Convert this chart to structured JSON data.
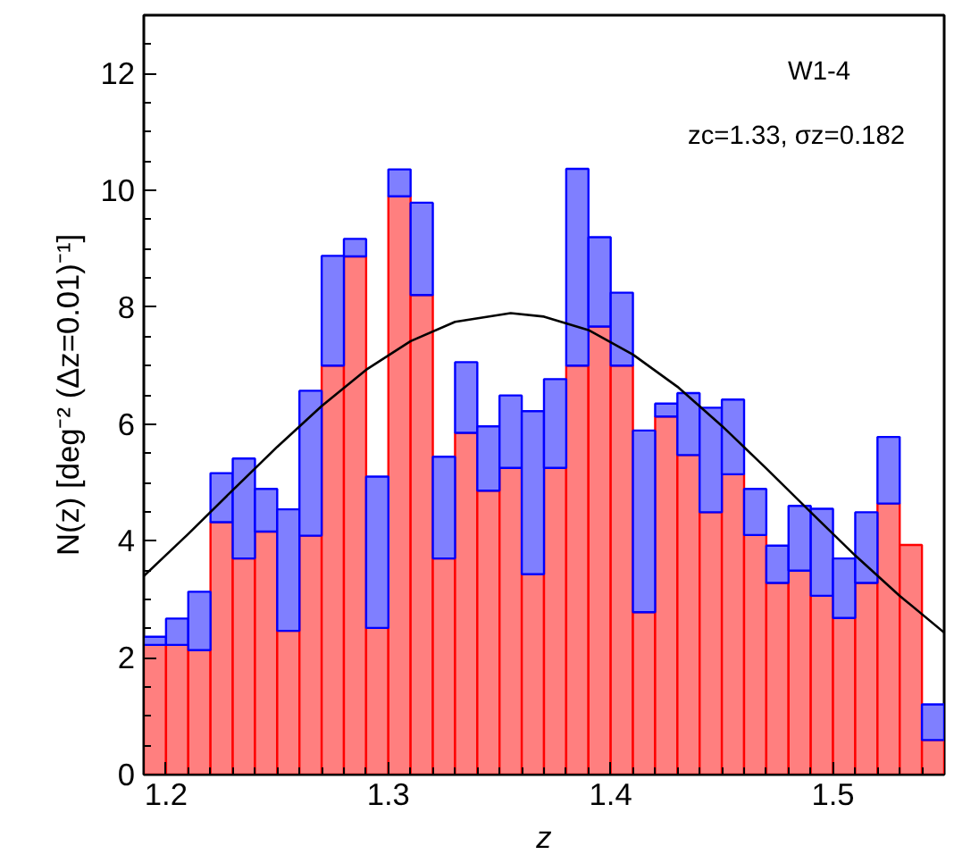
{
  "chart_data": {
    "type": "bar",
    "xlabel": "z",
    "ylabel": "N(z) [deg⁻² (Δz=0.01)⁻¹]",
    "x": [
      1.195,
      1.205,
      1.215,
      1.225,
      1.235,
      1.245,
      1.255,
      1.265,
      1.275,
      1.285,
      1.295,
      1.305,
      1.315,
      1.325,
      1.335,
      1.345,
      1.355,
      1.365,
      1.375,
      1.385,
      1.395,
      1.405,
      1.415,
      1.425,
      1.435,
      1.445,
      1.455,
      1.465,
      1.475,
      1.485,
      1.495,
      1.505,
      1.515,
      1.525,
      1.535,
      1.545
    ],
    "series": [
      {
        "color": "#ff0000",
        "values": [
          2.22,
          2.22,
          2.13,
          4.32,
          3.7,
          4.16,
          2.46,
          4.09,
          7.0,
          8.87,
          2.51,
          9.9,
          8.21,
          3.7,
          5.85,
          4.86,
          5.25,
          3.43,
          5.25,
          7.0,
          7.67,
          7.0,
          2.78,
          6.13,
          5.47,
          4.49,
          5.14,
          4.1,
          3.28,
          3.49,
          3.06,
          2.68,
          3.28,
          4.64,
          3.93,
          0.59
        ]
      },
      {
        "color": "#0000ff",
        "values": [
          0.14,
          0.45,
          1.0,
          0.84,
          1.71,
          0.73,
          2.08,
          2.48,
          1.88,
          0.3,
          2.59,
          0.46,
          1.58,
          1.74,
          1.21,
          1.1,
          1.24,
          2.79,
          1.52,
          3.37,
          1.53,
          1.25,
          3.11,
          0.22,
          1.06,
          1.79,
          1.28,
          0.79,
          0.64,
          1.11,
          1.49,
          1.02,
          1.21,
          1.14,
          null,
          0.61
        ]
      },
      {
        "type": "line",
        "color": "#000000",
        "x": [
          1.19,
          1.21,
          1.23,
          1.25,
          1.27,
          1.29,
          1.31,
          1.33,
          1.355,
          1.37,
          1.39,
          1.41,
          1.43,
          1.45,
          1.47,
          1.49,
          1.51,
          1.53,
          1.55
        ],
        "values": [
          3.4,
          4.12,
          4.87,
          5.61,
          6.31,
          6.93,
          7.42,
          7.75,
          7.9,
          7.84,
          7.61,
          7.19,
          6.64,
          5.97,
          5.24,
          4.49,
          3.75,
          3.06,
          2.43
        ]
      }
    ],
    "xlim": [
      1.19,
      1.55
    ],
    "xticks": [
      1.2,
      1.3,
      1.4,
      1.5
    ],
    "ylim": [
      0,
      13
    ],
    "yticks": [
      0,
      2,
      4,
      6,
      8,
      10,
      12
    ],
    "annotations": [
      "W1-4",
      "zc=1.33, σz=0.182"
    ],
    "stacked": true,
    "grid": false
  }
}
